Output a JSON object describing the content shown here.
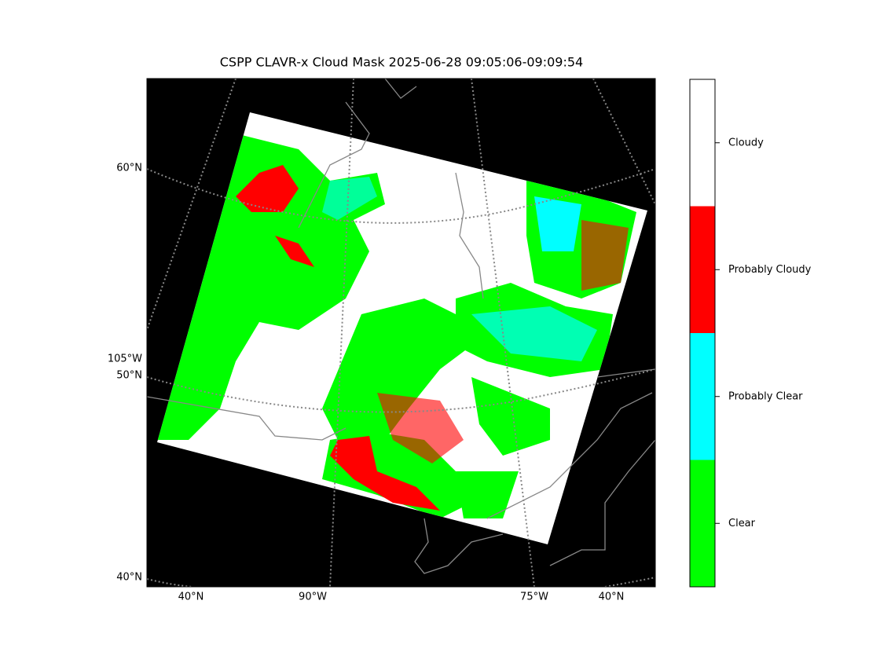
{
  "title": "CSPP CLAVR-x Cloud Mask 2025-06-28 09:05:06-09:09:54",
  "map": {
    "left_labels": [
      "60°N",
      "105°W",
      "50°N",
      "40°N"
    ],
    "bottom_labels": [
      "40°N",
      "90°W",
      "75°W",
      "40°N"
    ]
  },
  "colorbar": {
    "classes": [
      {
        "label": "Cloudy",
        "color": "#ffffff"
      },
      {
        "label": "Probably Cloudy",
        "color": "#ff0000"
      },
      {
        "label": "Probably Clear",
        "color": "#00ffff"
      },
      {
        "label": "Clear",
        "color": "#00ff00"
      }
    ]
  }
}
